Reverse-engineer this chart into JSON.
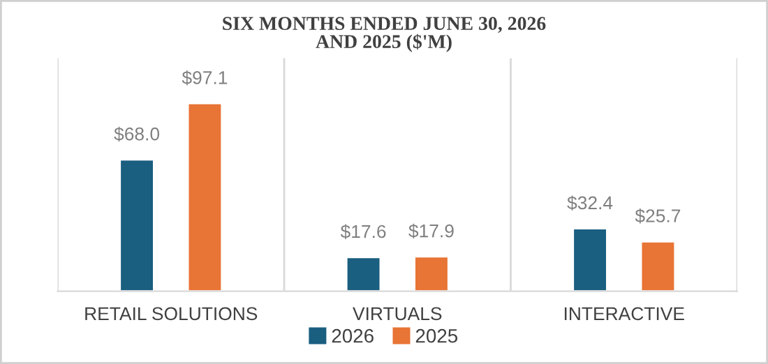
{
  "chart_data": {
    "type": "bar",
    "title": "SIX MONTHS ENDED JUNE 30, 2026\nAND 2025 ($'M)",
    "categories": [
      "RETAIL SOLUTIONS",
      "VIRTUALS",
      "INTERACTIVE"
    ],
    "series": [
      {
        "name": "2026",
        "color": "#1a5e80",
        "values": [
          68.0,
          17.6,
          32.4
        ],
        "value_labels": [
          "$68.0",
          "$17.6",
          "$32.4"
        ]
      },
      {
        "name": "2025",
        "color": "#e87435",
        "values": [
          97.1,
          17.9,
          25.7
        ],
        "value_labels": [
          "$97.1",
          "$17.9",
          "$25.7"
        ]
      }
    ],
    "grid": "x",
    "legend": "bottom",
    "tick_labels": "x"
  }
}
